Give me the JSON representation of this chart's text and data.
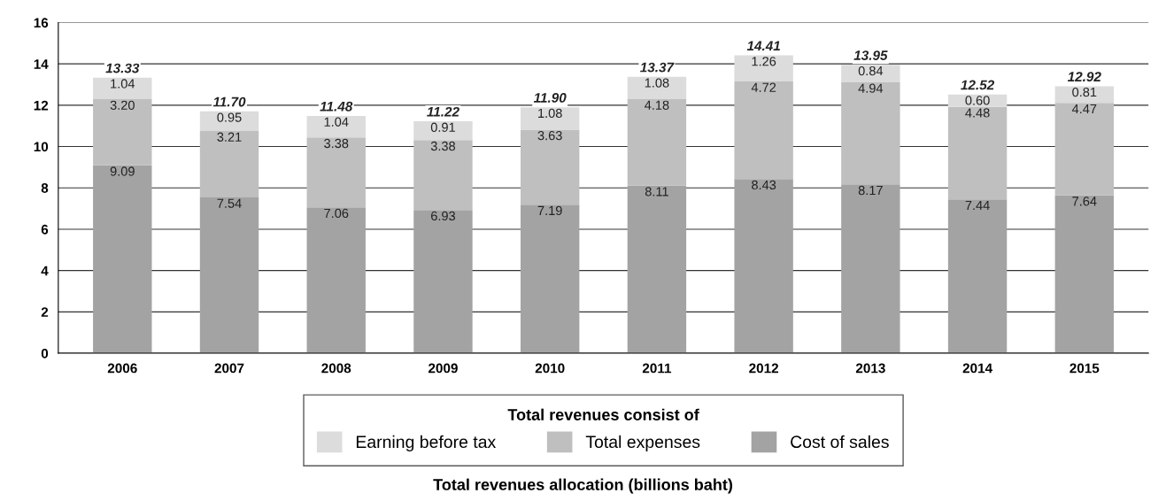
{
  "chart_data": {
    "type": "bar",
    "stacked": true,
    "categories": [
      "2006",
      "2007",
      "2008",
      "2009",
      "2010",
      "2011",
      "2012",
      "2013",
      "2014",
      "2015"
    ],
    "series": [
      {
        "name": "Cost of sales",
        "color": "#a3a3a3",
        "values": [
          9.09,
          7.54,
          7.06,
          6.93,
          7.19,
          8.11,
          8.43,
          8.17,
          7.44,
          7.64
        ],
        "value_labels": [
          "9.09",
          "7.54",
          "7.06",
          "6.93",
          "7.19",
          "8.11",
          "8.43",
          "8.17",
          "7.44",
          "7.64"
        ]
      },
      {
        "name": "Total expenses",
        "color": "#bfbfbf",
        "values": [
          3.2,
          3.21,
          3.38,
          3.38,
          3.63,
          4.18,
          4.72,
          4.94,
          4.48,
          4.47
        ],
        "value_labels": [
          "3.20",
          "3.21",
          "3.38",
          "3.38",
          "3.63",
          "4.18",
          "4.72",
          "4.94",
          "4.48",
          "4.47"
        ]
      },
      {
        "name": "Earning before tax",
        "color": "#dcdcdc",
        "values": [
          1.04,
          0.95,
          1.04,
          0.91,
          1.08,
          1.08,
          1.26,
          0.84,
          0.6,
          0.81
        ],
        "value_labels": [
          "1.04",
          "0.95",
          "1.04",
          "0.91",
          "1.08",
          "1.08",
          "1.26",
          "0.84",
          "0.60",
          "0.81"
        ]
      }
    ],
    "totals": [
      "13.33",
      "11.70",
      "11.48",
      "11.22",
      "11.90",
      "13.37",
      "14.41",
      "13.95",
      "12.52",
      "12.92"
    ],
    "ylim": [
      0,
      16
    ],
    "yticks": [
      0,
      2,
      4,
      6,
      8,
      10,
      12,
      14,
      16
    ],
    "grid": "y",
    "legend": "bottom",
    "legend_title": "Total revenues consist of",
    "annotations": [
      "Total revenues allocation (billions baht)"
    ]
  }
}
